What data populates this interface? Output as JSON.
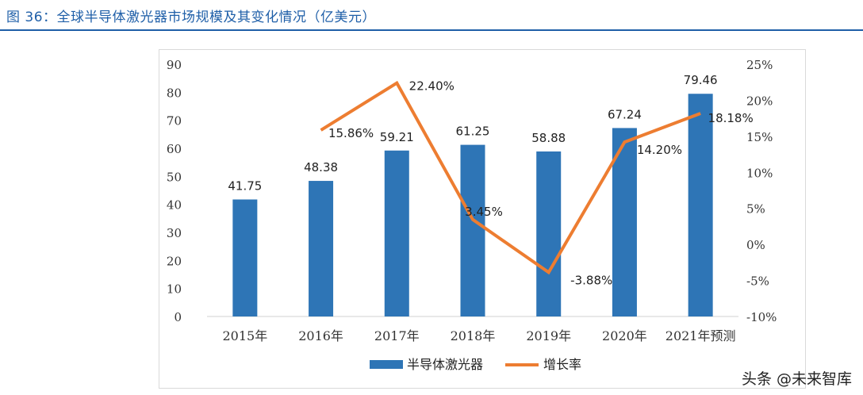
{
  "figure_title": "图 36：全球半导体激光器市场规模及其变化情况（亿美元）",
  "watermark": "头条 @未来智库",
  "colors": {
    "bar": "#2e75b6",
    "line": "#ed7d31",
    "title": "#1f5fa8"
  },
  "chart_data": {
    "type": "bar",
    "categories": [
      "2015年",
      "2016年",
      "2017年",
      "2018年",
      "2019年",
      "2020年",
      "2021年预测"
    ],
    "series": [
      {
        "name": "半导体激光器",
        "type": "bar",
        "axis": "left",
        "values": [
          41.75,
          48.38,
          59.21,
          61.25,
          58.88,
          67.24,
          79.46
        ],
        "labels": [
          "41.75",
          "48.38",
          "59.21",
          "61.25",
          "58.88",
          "67.24",
          "79.46"
        ]
      },
      {
        "name": "增长率",
        "type": "line",
        "axis": "right",
        "values": [
          null,
          15.86,
          22.4,
          3.45,
          -3.88,
          14.2,
          18.18
        ],
        "labels": [
          "",
          "15.86%",
          "22.40%",
          "3.45%",
          "-3.88%",
          "14.20%",
          "18.18%"
        ]
      }
    ],
    "y_left": {
      "min": 0,
      "max": 90,
      "ticks": [
        "0",
        "10",
        "20",
        "30",
        "40",
        "50",
        "60",
        "70",
        "80",
        "90"
      ]
    },
    "y_right": {
      "min": -10,
      "max": 25,
      "ticks": [
        "-10%",
        "-5%",
        "0%",
        "5%",
        "10%",
        "15%",
        "20%",
        "25%"
      ]
    },
    "legend_position": "bottom",
    "grid": false
  }
}
